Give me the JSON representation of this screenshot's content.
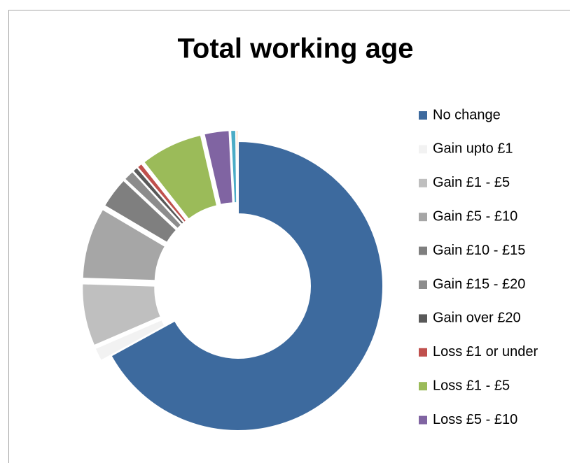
{
  "chart_data": {
    "type": "doughnut",
    "title": "Total working age",
    "categories": [
      "No change",
      "Gain upto £1",
      "Gain £1 - £5",
      "Gain £5 - £10",
      "Gain £10 - £15",
      "Gain £15 - £20",
      "Gain over £20",
      "Loss £1 or under",
      "Loss £1 - £5",
      "Loss £5 - £10",
      null,
      null
    ],
    "values": [
      67,
      1.5,
      7,
      8,
      3.5,
      1.2,
      0.6,
      0.6,
      7,
      2.8,
      0.6,
      0.2
    ],
    "colors": [
      "#3d6a9e",
      "#f2f2f2",
      "#bfbfbf",
      "#a6a6a6",
      "#7f7f7f",
      "#8c8c8c",
      "#595959",
      "#c0504d",
      "#9bbb59",
      "#8064a2",
      "#4bacc6",
      "#f79646"
    ],
    "legend": "right"
  }
}
